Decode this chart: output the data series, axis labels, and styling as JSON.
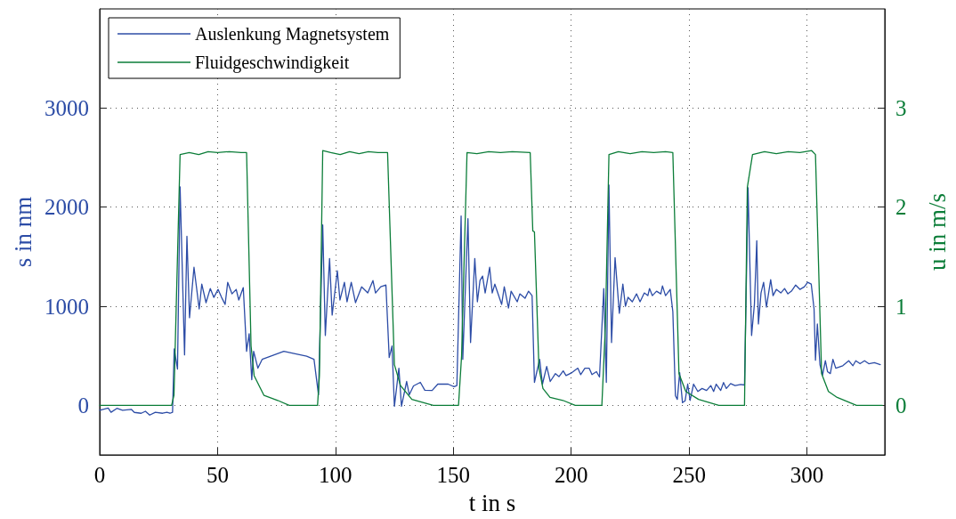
{
  "chart_data": {
    "type": "line",
    "xlabel": "t in s",
    "ylabel": "s in nm",
    "y2label": "u in m/s",
    "xlim": [
      0,
      333
    ],
    "xticks": [
      0,
      50,
      100,
      150,
      200,
      250,
      300
    ],
    "ylim": [
      -500,
      4000
    ],
    "yticks": [
      0,
      1000,
      2000,
      3000
    ],
    "y2lim": [
      -0.5,
      4
    ],
    "y2ticks": [
      0,
      1,
      2,
      3
    ],
    "grid": true,
    "legend": "top left",
    "marker": "none",
    "line_style": "solid",
    "series": [
      {
        "name": "Auslenkung Magnetsystem",
        "color": "#2c4ca6",
        "x": [
          0,
          3.6,
          4.8,
          7.3,
          9.7,
          13.4,
          14.7,
          17.6,
          19.4,
          21.2,
          23.6,
          26.7,
          28.5,
          29.8,
          30.9,
          31.6,
          33,
          34.1,
          36,
          37,
          38.1,
          40,
          42.2,
          43.3,
          45.1,
          46.9,
          48.4,
          50.2,
          51.7,
          53.2,
          54.3,
          56.1,
          57.9,
          59,
          60.9,
          62.3,
          63.4,
          64.5,
          65.3,
          67.1,
          68.9,
          73,
          78.1,
          82.9,
          87.8,
          90.9,
          92.8,
          94.6,
          95.7,
          97.5,
          98.6,
          100.8,
          101.9,
          103.8,
          104.9,
          106.7,
          108.5,
          111.1,
          113.7,
          115.9,
          117,
          119.2,
          121.4,
          122.8,
          124,
          125,
          126.9,
          128,
          130.2,
          131.3,
          133.1,
          136,
          137.9,
          141,
          143.4,
          147.8,
          150.3,
          151.5,
          153.3,
          154,
          156.2,
          157.3,
          159.1,
          160.2,
          161.3,
          162.4,
          163.5,
          165.4,
          166.5,
          167.6,
          170.5,
          171.6,
          173.4,
          174.5,
          177.1,
          178.2,
          180.4,
          181.9,
          183.4,
          184.4,
          186.6,
          187.8,
          189.6,
          191.1,
          193.3,
          194.8,
          196.6,
          197.8,
          200.3,
          202.8,
          204,
          205.8,
          207.6,
          208.8,
          210.7,
          212,
          213.8,
          214.9,
          216,
          217.1,
          218.6,
          220.4,
          221.9,
          223,
          224.1,
          225.9,
          227.7,
          229.2,
          231,
          232.5,
          233.2,
          234.4,
          236.2,
          238,
          238.7,
          240,
          242,
          243.1,
          244.2,
          245,
          246,
          247.2,
          248.3,
          249.4,
          250.4,
          251.9,
          253.7,
          255.5,
          257.4,
          259.2,
          260.4,
          261.5,
          263.4,
          264.6,
          265.8,
          267.6,
          269.5,
          271.9,
          273.5,
          275,
          276.5,
          277.7,
          278.7,
          279.4,
          280.5,
          281.6,
          282.8,
          284.6,
          285.6,
          287,
          288.9,
          290.5,
          291.9,
          293.4,
          295.2,
          297,
          298.9,
          300.3,
          301.8,
          303,
          303.6,
          304.4,
          305.5,
          306.6,
          307.8,
          308.7,
          309.9,
          311,
          312.2,
          315.2,
          317.7,
          319.5,
          320.7,
          322.5,
          324.4,
          326.2,
          328.6,
          331.1
        ],
        "values": [
          -50,
          -27,
          -70,
          -30,
          -50,
          -40,
          -71,
          -80,
          -60,
          -98,
          -70,
          -80,
          -70,
          -80,
          -70,
          570,
          366,
          2205,
          509,
          1705,
          884,
          1393,
          973,
          1223,
          1036,
          1179,
          1089,
          1170,
          1089,
          1018,
          1241,
          1125,
          1170,
          1063,
          1188,
          545,
          723,
          259,
          545,
          375,
          464,
          500,
          545,
          520,
          495,
          464,
          107,
          1821,
          705,
          1482,
          911,
          1357,
          1063,
          1241,
          1045,
          1241,
          1036,
          1196,
          1134,
          1259,
          1134,
          1196,
          1214,
          482,
          598,
          -9,
          375,
          -9,
          241,
          107,
          196,
          232,
          152,
          150,
          214,
          214,
          188,
          200,
          1911,
          464,
          1884,
          634,
          1482,
          1045,
          1259,
          1304,
          1134,
          1393,
          1134,
          1223,
          1018,
          1196,
          982,
          1152,
          1045,
          1125,
          1080,
          1152,
          1107,
          232,
          464,
          214,
          393,
          241,
          320,
          290,
          348,
          300,
          330,
          375,
          310,
          375,
          375,
          310,
          340,
          286,
          1179,
          232,
          2223,
          634,
          1491,
          929,
          1223,
          1000,
          1090,
          1045,
          1125,
          1045,
          1134,
          1107,
          1179,
          1107,
          1152,
          1125,
          1205,
          1107,
          1170,
          946,
          98,
          60,
          330,
          27,
          45,
          214,
          50,
          214,
          140,
          170,
          150,
          200,
          140,
          214,
          150,
          230,
          170,
          220,
          200,
          210,
          205,
          2196,
          705,
          1020,
          1661,
          821,
          1134,
          1241,
          991,
          1268,
          1107,
          1170,
          1134,
          1179,
          1125,
          1152,
          1214,
          1170,
          1196,
          1241,
          1223,
          973,
          455,
          821,
          411,
          304,
          450,
          340,
          321,
          464,
          375,
          400,
          450,
          400,
          450,
          420,
          450,
          420,
          430,
          411
        ]
      },
      {
        "name": "Fluidgeschwindigkeit",
        "color": "#0b7d38",
        "axis": "y2",
        "x": [
          0,
          30.5,
          31.5,
          34.1,
          38,
          42,
          46,
          50,
          55,
          60,
          62.3,
          64.2,
          65.5,
          67.8,
          69.7,
          75.5,
          80.4,
          92.4,
          93.2,
          94.6,
          98,
          102,
          106,
          110,
          114,
          118,
          122.1,
          125,
          127.6,
          132.4,
          141.5,
          152.2,
          153.5,
          155.8,
          160,
          165,
          170,
          175,
          182.6,
          183.7,
          184.4,
          186.3,
          188,
          191,
          196.5,
          201.7,
          213,
          214.5,
          216,
          220,
          225,
          230,
          235,
          240,
          243.1,
          245.7,
          248.6,
          254,
          262.6,
          273.5,
          274.7,
          276.9,
          282,
          287,
          292,
          297,
          302,
          303.6,
          306.2,
          309.1,
          312.8,
          321,
          332
        ],
        "values": [
          0,
          0,
          0.1,
          2.53,
          2.55,
          2.53,
          2.56,
          2.55,
          2.56,
          2.55,
          2.55,
          0.6,
          0.3,
          0.19,
          0.1,
          0.05,
          0,
          0,
          0.3,
          2.57,
          2.55,
          2.53,
          2.56,
          2.54,
          2.56,
          2.55,
          2.55,
          0.41,
          0.2,
          0.06,
          0,
          0,
          0.5,
          2.55,
          2.54,
          2.56,
          2.55,
          2.56,
          2.55,
          1.76,
          1.75,
          0.38,
          0.17,
          0.08,
          0.05,
          0,
          0,
          0.8,
          2.53,
          2.56,
          2.54,
          2.56,
          2.55,
          2.56,
          2.55,
          0.32,
          0.14,
          0.06,
          0,
          0,
          2.2,
          2.53,
          2.56,
          2.54,
          2.56,
          2.55,
          2.57,
          2.53,
          0.32,
          0.14,
          0.08,
          0,
          0
        ]
      }
    ]
  }
}
